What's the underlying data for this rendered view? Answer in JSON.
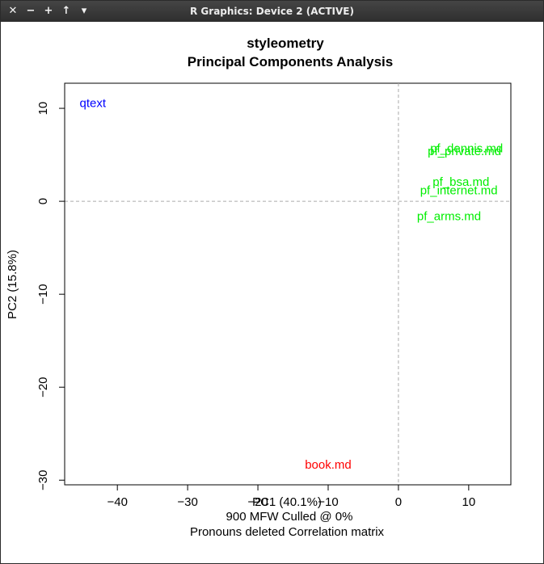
{
  "window": {
    "title": "R Graphics: Device 2 (ACTIVE)",
    "buttons": [
      {
        "name": "close",
        "glyph": "✕"
      },
      {
        "name": "minimize",
        "glyph": "−"
      },
      {
        "name": "maximize",
        "glyph": "+"
      },
      {
        "name": "raise",
        "glyph": "↑"
      },
      {
        "name": "menu",
        "glyph": "▾"
      }
    ]
  },
  "chart_data": {
    "type": "scatter",
    "title": "styleometry",
    "subtitle": "Principal Components Analysis",
    "xlabel": "PC1 (40.1%)",
    "ylabel": "PC2 (15.8%)",
    "xlim": [
      -47.5,
      16
    ],
    "ylim": [
      -30.5,
      12.7
    ],
    "xticks": [
      -40,
      -30,
      -20,
      -10,
      0,
      10
    ],
    "yticks": [
      -30,
      -20,
      -10,
      0,
      10
    ],
    "reference_lines": {
      "x": 0,
      "y": 0,
      "style": "dashed",
      "color": "#aaaaaa"
    },
    "footer": [
      "900 MFW  Culled @ 0%",
      "Pronouns deleted Correlation matrix"
    ],
    "points": [
      {
        "label": "qtext",
        "x": -43.5,
        "y": 10.5,
        "color": "#0000ff"
      },
      {
        "label": "pf_dennis.md",
        "x": 9.7,
        "y": 5.6,
        "color": "#00ee00"
      },
      {
        "label": "pf_private.md",
        "x": 9.4,
        "y": 5.3,
        "color": "#00ee00"
      },
      {
        "label": "pf_bsa.md",
        "x": 8.9,
        "y": 2.0,
        "color": "#00ee00"
      },
      {
        "label": "pf_internet.md",
        "x": 8.6,
        "y": 1.1,
        "color": "#00ee00"
      },
      {
        "label": "pf_arms.md",
        "x": 7.2,
        "y": -1.7,
        "color": "#00ee00"
      },
      {
        "label": "book.md",
        "x": -10,
        "y": -28.4,
        "color": "#ff0000"
      }
    ]
  }
}
